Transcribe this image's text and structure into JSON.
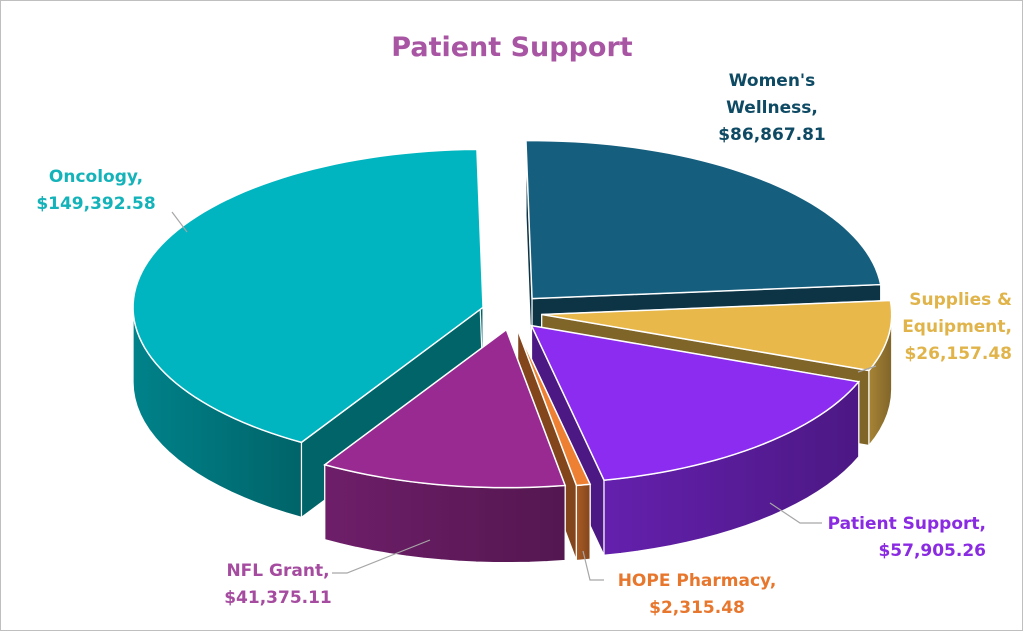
{
  "chart_data": {
    "type": "pie",
    "title": "Patient Support",
    "title_color": "#A855A3",
    "currency": "$",
    "slices": [
      {
        "name": "Women's Wellness",
        "value": 86867.81,
        "label_lines": [
          "Women's",
          "Wellness,",
          "$86,867.81"
        ],
        "color": "#155E7E",
        "label_color": "#0E4A63"
      },
      {
        "name": "Supplies & Equipment",
        "value": 26157.48,
        "label_lines": [
          "Supplies &",
          "Equipment,",
          "$26,157.48"
        ],
        "color": "#E8B84A",
        "label_color": "#E0B44A"
      },
      {
        "name": "Patient Support",
        "value": 57905.26,
        "label_lines": [
          "Patient Support,",
          "$57,905.26"
        ],
        "color": "#8B2CF0",
        "label_color": "#8A2BE2"
      },
      {
        "name": "HOPE Pharmacy",
        "value": 2315.48,
        "label_lines": [
          "HOPE Pharmacy,",
          "$2,315.48"
        ],
        "color": "#EE8033",
        "label_color": "#E8772E"
      },
      {
        "name": "NFL Grant",
        "value": 41375.11,
        "label_lines": [
          "NFL Grant,",
          "$41,375.11"
        ],
        "color": "#992A92",
        "label_color": "#A64CA0"
      },
      {
        "name": "Oncology",
        "value": 149392.58,
        "label_lines": [
          "Oncology,",
          "$149,392.58"
        ],
        "color": "#00B5BF",
        "label_color": "#14B3BA"
      }
    ]
  }
}
